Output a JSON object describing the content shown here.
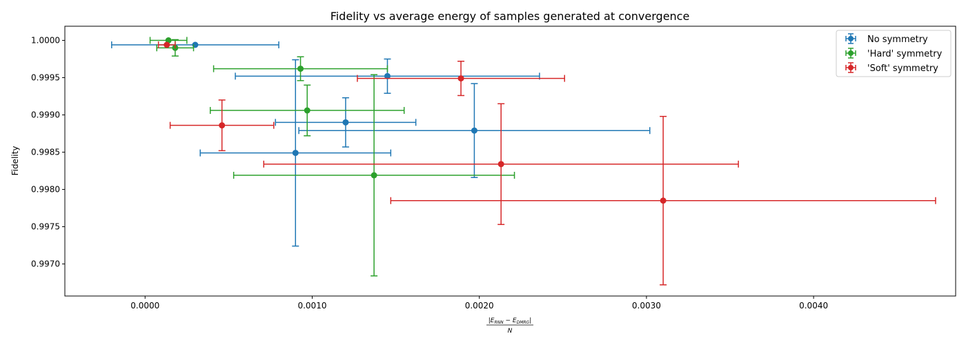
{
  "chart_data": {
    "type": "scatter",
    "title": "Fidelity vs average energy of samples generated at convergence",
    "xlabel": {
      "numerator": "|E",
      "sub1": "RNN",
      "mid": " − E",
      "sub2": "DMRG",
      "close": "|",
      "denominator": "N"
    },
    "ylabel": "Fidelity",
    "xlim": [
      -0.00048,
      0.00485
    ],
    "ylim": [
      0.99657,
      1.00019
    ],
    "xticks": [
      0.0,
      0.001,
      0.002,
      0.003,
      0.004
    ],
    "xtick_labels": [
      "0.0000",
      "0.0010",
      "0.0020",
      "0.0030",
      "0.0040"
    ],
    "yticks": [
      0.997,
      0.9975,
      0.998,
      0.9985,
      0.999,
      0.9995,
      1.0
    ],
    "ytick_labels": [
      "0.9970",
      "0.9975",
      "0.9980",
      "0.9985",
      "0.9990",
      "0.9995",
      "1.0000"
    ],
    "grid": false,
    "legend_position": "top-right",
    "series": [
      {
        "name": "No symmetry",
        "color": "#1f77b4",
        "points": [
          {
            "x": 0.0003,
            "y": 0.99994,
            "xerr": 0.0005,
            "yerr": 0.0
          },
          {
            "x": 0.00145,
            "y": 0.99952,
            "xerr": 0.00091,
            "yerr": 0.00023
          },
          {
            "x": 0.0012,
            "y": 0.9989,
            "xerr": 0.00042,
            "yerr": 0.00033
          },
          {
            "x": 0.00197,
            "y": 0.99879,
            "xerr": 0.00105,
            "yerr": 0.00063
          },
          {
            "x": 0.0009,
            "y": 0.99849,
            "xerr": 0.00057,
            "yerr": 0.00125
          }
        ]
      },
      {
        "name": "'Hard' symmetry",
        "color": "#2ca02c",
        "points": [
          {
            "x": 0.00014,
            "y": 1.0,
            "xerr": 0.00011,
            "yerr": 0.0
          },
          {
            "x": 0.00018,
            "y": 0.9999,
            "xerr": 0.00011,
            "yerr": 0.00011
          },
          {
            "x": 0.00093,
            "y": 0.99962,
            "xerr": 0.00052,
            "yerr": 0.00016
          },
          {
            "x": 0.00097,
            "y": 0.99906,
            "xerr": 0.00058,
            "yerr": 0.00034
          },
          {
            "x": 0.00137,
            "y": 0.99819,
            "xerr": 0.00084,
            "yerr": 0.00135
          }
        ]
      },
      {
        "name": "'Soft' symmetry",
        "color": "#d62728",
        "points": [
          {
            "x": 0.00013,
            "y": 0.99994,
            "xerr": 5e-05,
            "yerr": 0.0
          },
          {
            "x": 0.00189,
            "y": 0.99949,
            "xerr": 0.00062,
            "yerr": 0.00023
          },
          {
            "x": 0.00046,
            "y": 0.99886,
            "xerr": 0.00031,
            "yerr": 0.00034
          },
          {
            "x": 0.00213,
            "y": 0.99834,
            "xerr": 0.00142,
            "yerr": 0.00081
          },
          {
            "x": 0.0031,
            "y": 0.99785,
            "xerr": 0.00163,
            "yerr": 0.00113
          }
        ]
      }
    ]
  }
}
